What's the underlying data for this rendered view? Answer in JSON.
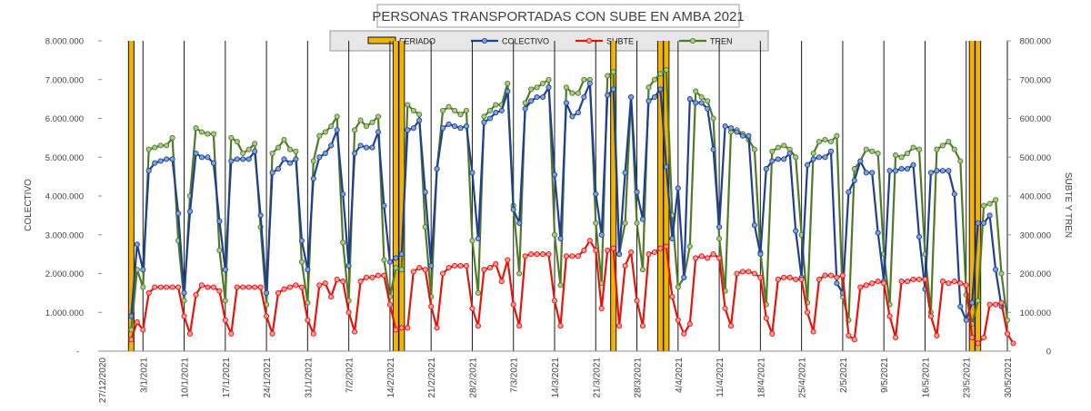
{
  "chart_data": {
    "type": "line",
    "title": "PERSONAS TRANSPORTADAS CON SUBE EN AMBA 2021",
    "ylabel_left": "COLECTIVO",
    "ylabel_right": "SUBTE Y TREN",
    "ylim_left": [
      0,
      8000000
    ],
    "ylim_right": [
      0,
      800000
    ],
    "left_ticks": [
      {
        "value": 0,
        "label": "-"
      },
      {
        "value": 1000000,
        "label": "1.000.000"
      },
      {
        "value": 2000000,
        "label": "2.000.000"
      },
      {
        "value": 3000000,
        "label": "3.000.000"
      },
      {
        "value": 4000000,
        "label": "4.000.000"
      },
      {
        "value": 5000000,
        "label": "5.000.000"
      },
      {
        "value": 6000000,
        "label": "6.000.000"
      },
      {
        "value": 7000000,
        "label": "7.000.000"
      },
      {
        "value": 8000000,
        "label": "8.000.000"
      }
    ],
    "right_ticks": [
      {
        "value": 0,
        "label": "0"
      },
      {
        "value": 100000,
        "label": "100.000"
      },
      {
        "value": 200000,
        "label": "200.000"
      },
      {
        "value": 300000,
        "label": "300.000"
      },
      {
        "value": 400000,
        "label": "400.000"
      },
      {
        "value": 500000,
        "label": "500.000"
      },
      {
        "value": 600000,
        "label": "600.000"
      },
      {
        "value": 700000,
        "label": "700.000"
      },
      {
        "value": 800000,
        "label": "800.000"
      }
    ],
    "x_range": [
      "2020-12-27",
      "2021-05-30"
    ],
    "x_ticks": [
      "27/12/2020",
      "3/1/2021",
      "10/1/2021",
      "17/1/2021",
      "24/1/2021",
      "31/1/2021",
      "7/2/2021",
      "14/2/2021",
      "21/2/2021",
      "28/2/2021",
      "7/3/2021",
      "14/3/2021",
      "21/3/2021",
      "28/3/2021",
      "4/4/2021",
      "11/4/2021",
      "18/4/2021",
      "25/4/2021",
      "2/5/2021",
      "9/5/2021",
      "16/5/2021",
      "23/5/2021",
      "30/5/2021"
    ],
    "feriados": [
      "2021-01-01",
      "2021-02-15",
      "2021-02-16",
      "2021-03-24",
      "2021-04-01",
      "2021-04-02",
      "2021-05-24",
      "2021-05-25"
    ],
    "legend": [
      {
        "name": "FERIADO",
        "color": "#f2b400",
        "kind": "bar"
      },
      {
        "name": "COLECTIVO",
        "color": "#1f3f8f",
        "kind": "line"
      },
      {
        "name": "SUBTE",
        "color": "#e8140a",
        "kind": "line"
      },
      {
        "name": "TREN",
        "color": "#4f7a28",
        "kind": "line"
      }
    ],
    "series": [
      {
        "name": "COLECTIVO",
        "axis": "left",
        "color": "#1f3f8f",
        "marker": "#7ea4dc",
        "start": "2021-01-01",
        "values": [
          900000,
          2750000,
          2100000,
          4650000,
          4850000,
          4900000,
          4950000,
          4950000,
          3550000,
          1500000,
          3600000,
          5100000,
          5000000,
          5000000,
          4850000,
          3350000,
          2100000,
          4900000,
          4950000,
          4950000,
          4950000,
          5150000,
          3500000,
          1500000,
          4600000,
          4700000,
          4950000,
          4850000,
          4950000,
          2850000,
          2100000,
          4450000,
          5000000,
          5100000,
          5300000,
          5700000,
          4050000,
          2200000,
          5100000,
          5300000,
          5250000,
          5250000,
          5650000,
          3750000,
          2300000,
          2400000,
          2500000,
          5700000,
          5750000,
          5950000,
          4100000,
          2200000,
          4700000,
          5750000,
          5850000,
          5800000,
          5750000,
          5800000,
          4600000,
          2900000,
          5900000,
          6000000,
          6150000,
          6200000,
          6700000,
          3650000,
          3300000,
          6250000,
          6450000,
          6550000,
          6550000,
          6800000,
          4550000,
          2900000,
          6400000,
          6050000,
          6150000,
          6550000,
          6900000,
          4050000,
          3000000,
          6600000,
          6750000,
          2500000,
          4600000,
          6550000,
          4100000,
          3400000,
          6450000,
          6550000,
          6750000,
          4750000,
          2900000,
          4200000,
          1900000,
          6500000,
          6400000,
          6400000,
          6250000,
          5200000,
          3200000,
          5800000,
          5750000,
          5650000,
          5550000,
          5550000,
          3250000,
          2500000,
          4700000,
          4900000,
          4950000,
          4950000,
          5100000,
          3100000,
          1900000,
          4800000,
          4950000,
          5000000,
          5000000,
          5150000,
          1750000,
          1500000,
          4100000,
          4400000,
          4900000,
          4600000,
          4600000,
          3050000,
          1800000,
          4650000,
          4650000,
          4700000,
          4700000,
          4800000,
          2950000,
          1600000,
          4600000,
          4650000,
          4650000,
          4650000,
          4050000,
          1150000,
          800000,
          1250000,
          3300000,
          3300000,
          3500000,
          2100000,
          1150000
        ]
      },
      {
        "name": "SUBTE",
        "axis": "right",
        "color": "#e8140a",
        "marker": "#f49a9a",
        "start": "2021-01-01",
        "values": [
          30000,
          75000,
          55000,
          150000,
          165000,
          165000,
          165000,
          165000,
          165000,
          90000,
          45000,
          145000,
          170000,
          165000,
          165000,
          155000,
          80000,
          45000,
          165000,
          165000,
          165000,
          165000,
          165000,
          90000,
          45000,
          150000,
          160000,
          165000,
          170000,
          165000,
          80000,
          45000,
          170000,
          175000,
          140000,
          185000,
          180000,
          100000,
          50000,
          180000,
          190000,
          190000,
          195000,
          195000,
          120000,
          55000,
          60000,
          60000,
          205000,
          215000,
          210000,
          115000,
          60000,
          200000,
          215000,
          220000,
          220000,
          220000,
          110000,
          65000,
          210000,
          215000,
          225000,
          180000,
          235000,
          120000,
          65000,
          245000,
          250000,
          250000,
          250000,
          250000,
          130000,
          65000,
          245000,
          245000,
          245000,
          260000,
          285000,
          260000,
          110000,
          260000,
          265000,
          65000,
          220000,
          255000,
          130000,
          65000,
          250000,
          255000,
          265000,
          270000,
          140000,
          80000,
          45000,
          70000,
          240000,
          245000,
          240000,
          250000,
          240000,
          110000,
          65000,
          200000,
          205000,
          205000,
          200000,
          190000,
          85000,
          45000,
          185000,
          190000,
          190000,
          185000,
          185000,
          100000,
          50000,
          185000,
          195000,
          195000,
          190000,
          195000,
          40000,
          30000,
          165000,
          170000,
          175000,
          180000,
          175000,
          90000,
          35000,
          180000,
          180000,
          185000,
          185000,
          185000,
          90000,
          40000,
          180000,
          175000,
          180000,
          175000,
          170000,
          35000,
          20000,
          35000,
          120000,
          120000,
          125000,
          45000,
          20000
        ]
      },
      {
        "name": "TREN",
        "axis": "right",
        "color": "#4f7a28",
        "marker": "#a6cc88",
        "start": "2021-01-01",
        "values": [
          55000,
          210000,
          165000,
          520000,
          525000,
          530000,
          530000,
          550000,
          285000,
          130000,
          400000,
          575000,
          565000,
          560000,
          560000,
          260000,
          130000,
          550000,
          540000,
          510000,
          520000,
          535000,
          320000,
          120000,
          510000,
          525000,
          545000,
          520000,
          515000,
          230000,
          125000,
          490000,
          555000,
          565000,
          580000,
          605000,
          280000,
          130000,
          570000,
          595000,
          580000,
          590000,
          605000,
          235000,
          140000,
          215000,
          210000,
          635000,
          620000,
          610000,
          320000,
          140000,
          470000,
          620000,
          630000,
          620000,
          610000,
          620000,
          285000,
          150000,
          605000,
          620000,
          635000,
          635000,
          690000,
          375000,
          200000,
          640000,
          675000,
          680000,
          690000,
          700000,
          300000,
          170000,
          680000,
          665000,
          665000,
          700000,
          700000,
          330000,
          175000,
          710000,
          720000,
          250000,
          330000,
          655000,
          330000,
          210000,
          680000,
          700000,
          715000,
          725000,
          350000,
          165000,
          190000,
          270000,
          670000,
          655000,
          645000,
          600000,
          290000,
          155000,
          565000,
          570000,
          560000,
          545000,
          520000,
          255000,
          120000,
          515000,
          525000,
          530000,
          520000,
          500000,
          300000,
          125000,
          510000,
          540000,
          545000,
          540000,
          555000,
          140000,
          80000,
          470000,
          490000,
          520000,
          515000,
          510000,
          250000,
          120000,
          505000,
          500000,
          510000,
          525000,
          520000,
          250000,
          100000,
          520000,
          530000,
          540000,
          520000,
          490000,
          145000,
          70000,
          130000,
          375000,
          380000,
          390000,
          200000,
          80000
        ]
      }
    ]
  }
}
